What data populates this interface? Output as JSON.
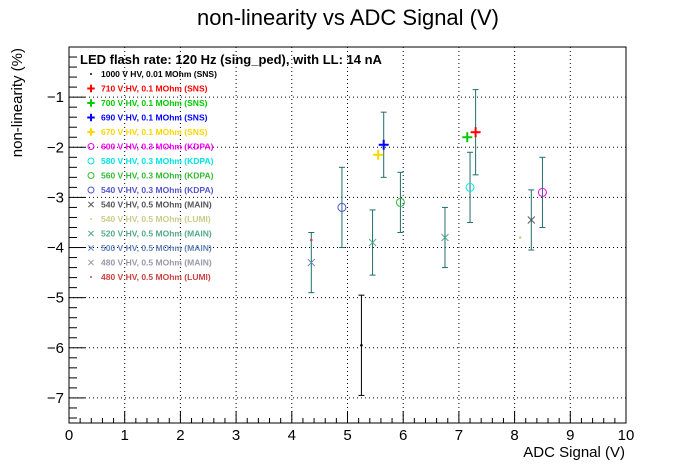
{
  "chart_data": {
    "type": "scatter",
    "title": "non-linearity vs ADC Signal (V)",
    "subtitle": "LED flash rate: 120 Hz  (sing_ped), with LL: 14 nA",
    "xlabel": "ADC Signal (V)",
    "ylabel": "non-linearity (%)",
    "xlim": [
      0,
      10
    ],
    "ylim": [
      -7.5,
      0
    ],
    "x_ticks": [
      "0",
      "1",
      "2",
      "3",
      "4",
      "5",
      "6",
      "7",
      "8",
      "9",
      "10"
    ],
    "y_ticks": [
      "−1",
      "−2",
      "−3",
      "−4",
      "−5",
      "−6",
      "−7"
    ],
    "grid": true,
    "legend_position": "top-left",
    "series": [
      {
        "name": "1000 V HV, 0.01 MOhm (SNS)",
        "color": "#000000",
        "marker": "dot",
        "points": [
          {
            "x": 5.25,
            "y": -5.95,
            "err": 1.0
          }
        ]
      },
      {
        "name": "710 V HV, 0.1 MOhm (SNS)",
        "color": "#ff0000",
        "marker": "plus",
        "points": [
          {
            "x": 7.3,
            "y": -1.7,
            "err": 0.85
          }
        ]
      },
      {
        "name": "700 V HV, 0.1 MOhm (SNS)",
        "color": "#00cc00",
        "marker": "plus",
        "points": [
          {
            "x": 7.15,
            "y": -1.8,
            "err": 0.0
          }
        ]
      },
      {
        "name": "690 V HV, 0.1 MOhm (SNS)",
        "color": "#0000ff",
        "marker": "plus",
        "points": [
          {
            "x": 5.65,
            "y": -1.95,
            "err": 0.65
          }
        ]
      },
      {
        "name": "670 V HV, 0.1 MOhm (SNS)",
        "color": "#ffd700",
        "marker": "plus",
        "points": [
          {
            "x": 5.55,
            "y": -2.15,
            "err": 0.0
          }
        ]
      },
      {
        "name": "600 V HV, 0.3 MOhm (KDPA)",
        "color": "#ff00ff",
        "marker": "circle",
        "points": [
          {
            "x": 8.5,
            "y": -2.9,
            "err": 0.7
          }
        ]
      },
      {
        "name": "580 V HV, 0.3 MOhm (KDPA)",
        "color": "#00e5e5",
        "marker": "circle",
        "points": [
          {
            "x": 7.2,
            "y": -2.8,
            "err": 0.7
          }
        ]
      },
      {
        "name": "560 V HV, 0.3 MOhm (KDPA)",
        "color": "#33bb33",
        "marker": "circle",
        "points": [
          {
            "x": 5.95,
            "y": -3.1,
            "err": 0.6
          }
        ]
      },
      {
        "name": "540 V HV, 0.3 MOhm (KDPA)",
        "color": "#5555cc",
        "marker": "circle",
        "points": [
          {
            "x": 4.9,
            "y": -3.2,
            "err": 0.8
          }
        ]
      },
      {
        "name": "540 V HV, 0.5 MOhm (MAIN)",
        "color": "#555555",
        "marker": "cross",
        "points": [
          {
            "x": 8.3,
            "y": -3.45,
            "err": 0.6
          }
        ]
      },
      {
        "name": "540 V HV, 0.5 MOhm (LUMI)",
        "color": "#cccc88",
        "marker": "dot",
        "points": [
          {
            "x": 8.1,
            "y": -3.8,
            "err": 0.0
          }
        ]
      },
      {
        "name": "520 V HV, 0.5 MOhm (MAIN)",
        "color": "#55aa88",
        "marker": "cross",
        "points": [
          {
            "x": 6.75,
            "y": -3.8,
            "err": 0.6
          },
          {
            "x": 5.45,
            "y": -3.9,
            "err": 0.65
          }
        ]
      },
      {
        "name": "500 V HV, 0.5 MOhm (MAIN)",
        "color": "#6688bb",
        "marker": "cross",
        "points": [
          {
            "x": 4.35,
            "y": -4.3,
            "err": 0.6
          }
        ]
      },
      {
        "name": "480 V HV, 0.5 MOhm (MAIN)",
        "color": "#9999aa",
        "marker": "cross",
        "points": []
      },
      {
        "name": "480 V HV, 0.5 MOhm (LUMI)",
        "color": "#cc4444",
        "marker": "dot",
        "points": [
          {
            "x": 4.35,
            "y": -3.85,
            "err": 0.0
          }
        ]
      }
    ]
  }
}
